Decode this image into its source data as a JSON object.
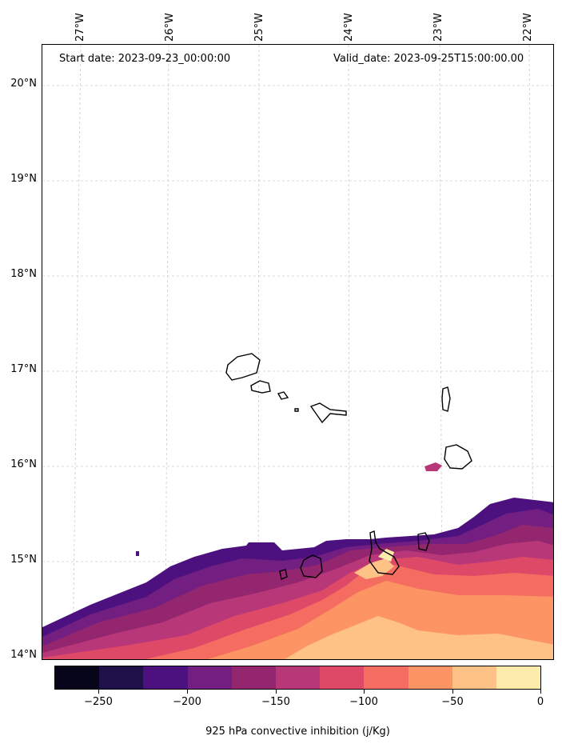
{
  "header": {
    "start_date": "Start date: 2023-09-23_00:00:00",
    "valid_date": "Valid_date: 2023-09-25T15:00:00.00"
  },
  "axes": {
    "lat_labels": [
      "20°N",
      "19°N",
      "18°N",
      "17°N",
      "16°N",
      "15°N",
      "14°N"
    ],
    "lon_labels": [
      "27°W",
      "26°W",
      "25°W",
      "24°W",
      "23°W",
      "22°W"
    ]
  },
  "colorbar": {
    "title": "925 hPa convective inhibition (j/Kg)",
    "tick_labels": [
      "−250",
      "−200",
      "−150",
      "−100",
      "−50",
      "0"
    ],
    "colors": [
      "#06051a",
      "#1f1049",
      "#4c117f",
      "#721f81",
      "#94266f",
      "#b73779",
      "#de4968",
      "#f56d60",
      "#fc9463",
      "#fec287",
      "#fcebaa"
    ]
  },
  "chart_data": {
    "type": "contour-map",
    "variable": "925 hPa convective inhibition",
    "unit": "j/Kg",
    "lat_range": [
      14,
      20.4
    ],
    "lon_range": [
      -27.4,
      -21.7
    ],
    "levels": [
      -275,
      -250,
      -225,
      -200,
      -175,
      -150,
      -125,
      -100,
      -75,
      -50,
      -25,
      0
    ],
    "colorbar_ticks": [
      -250,
      -200,
      -150,
      -100,
      -50,
      0
    ]
  }
}
